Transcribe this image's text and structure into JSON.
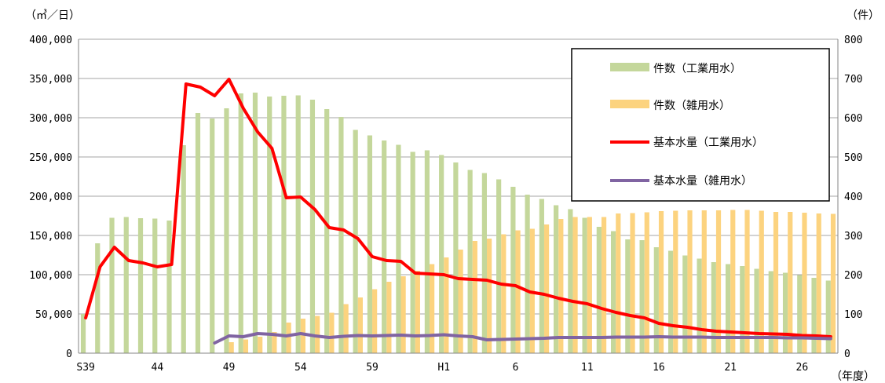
{
  "chart_data": {
    "type": "bar+line",
    "units": {
      "left": "（㎥／日）",
      "right": "（件）",
      "x": "（年度）"
    },
    "x": [
      "S39",
      "40",
      "41",
      "42",
      "43",
      "44",
      "45",
      "46",
      "47",
      "48",
      "49",
      "50",
      "51",
      "52",
      "53",
      "54",
      "55",
      "56",
      "57",
      "58",
      "59",
      "60",
      "61",
      "62",
      "63",
      "H1",
      "2",
      "3",
      "4",
      "5",
      "6",
      "7",
      "8",
      "9",
      "10",
      "11",
      "12",
      "13",
      "14",
      "15",
      "16",
      "17",
      "18",
      "19",
      "20",
      "21",
      "22",
      "23",
      "24",
      "25",
      "26",
      "27",
      "28"
    ],
    "x_tick_labels": [
      "S39",
      "44",
      "49",
      "54",
      "59",
      "H1",
      "6",
      "11",
      "16",
      "21",
      "26"
    ],
    "y_left": {
      "ticks": [
        "0",
        "50,000",
        "100,000",
        "150,000",
        "200,000",
        "250,000",
        "300,000",
        "350,000",
        "400,000"
      ],
      "ylim": [
        0,
        400000
      ]
    },
    "y_right": {
      "ticks": [
        "0",
        "100",
        "200",
        "300",
        "400",
        "500",
        "600",
        "700",
        "800"
      ],
      "ylim": [
        0,
        800
      ]
    },
    "legend": {
      "position": "top-right",
      "entries": [
        "件数（工業用水）",
        "件数（雑用水）",
        "基本水量（工業用水）",
        "基本水量（雑用水）"
      ]
    },
    "colors": {
      "count_industrial": "#c4d79b",
      "count_misc": "#fcd37f",
      "volume_industrial": "#ff0000",
      "volume_misc": "#8064a2"
    },
    "series": [
      {
        "name": "件数（工業用水）",
        "type": "bar",
        "axis": "right",
        "values": [
          100,
          280,
          345,
          347,
          344,
          343,
          338,
          530,
          612,
          598,
          624,
          662,
          664,
          654,
          656,
          657,
          646,
          622,
          602,
          569,
          555,
          542,
          531,
          513,
          517,
          505,
          486,
          467,
          459,
          443,
          424,
          404,
          393,
          377,
          367,
          345,
          322,
          311,
          290,
          288,
          270,
          261,
          249,
          241,
          232,
          227,
          222,
          215,
          209,
          205,
          199,
          192,
          185
        ]
      },
      {
        "name": "件数（雑用水）",
        "type": "bar",
        "axis": "right",
        "values": [
          null,
          null,
          null,
          null,
          null,
          null,
          null,
          null,
          null,
          null,
          28,
          35,
          42,
          54,
          78,
          88,
          95,
          103,
          125,
          142,
          163,
          182,
          196,
          210,
          227,
          244,
          264,
          286,
          292,
          303,
          313,
          317,
          328,
          342,
          347,
          347,
          347,
          356,
          357,
          359,
          362,
          363,
          364,
          364,
          364,
          365,
          365,
          363,
          360,
          360,
          358,
          356,
          355
        ]
      },
      {
        "name": "基本水量（工業用水）",
        "type": "line",
        "axis": "left",
        "values": [
          45000,
          110000,
          135000,
          118000,
          115000,
          110000,
          113000,
          343000,
          339000,
          328000,
          349000,
          312000,
          282000,
          261000,
          198000,
          199000,
          183000,
          160000,
          157000,
          146000,
          123000,
          118000,
          117000,
          102000,
          101000,
          100000,
          95000,
          94000,
          93000,
          88000,
          86000,
          78000,
          75000,
          70000,
          66000,
          63000,
          57000,
          52000,
          48000,
          45000,
          38000,
          35000,
          33000,
          30000,
          28000,
          27000,
          26000,
          25000,
          24500,
          24000,
          22500,
          22000,
          21000
        ]
      },
      {
        "name": "基本水量（雑用水）",
        "type": "line",
        "axis": "left",
        "values": [
          null,
          null,
          null,
          null,
          null,
          null,
          null,
          null,
          null,
          13000,
          22000,
          21000,
          25000,
          24000,
          22000,
          25000,
          22000,
          20000,
          21500,
          22500,
          22000,
          22500,
          23000,
          22000,
          22500,
          23500,
          22000,
          21000,
          17000,
          17500,
          18000,
          18500,
          19000,
          20000,
          20000,
          20000,
          20000,
          20500,
          20500,
          20500,
          21000,
          20500,
          20500,
          20500,
          20000,
          20000,
          20000,
          20000,
          20000,
          19500,
          19500,
          19000,
          18500
        ]
      }
    ]
  }
}
